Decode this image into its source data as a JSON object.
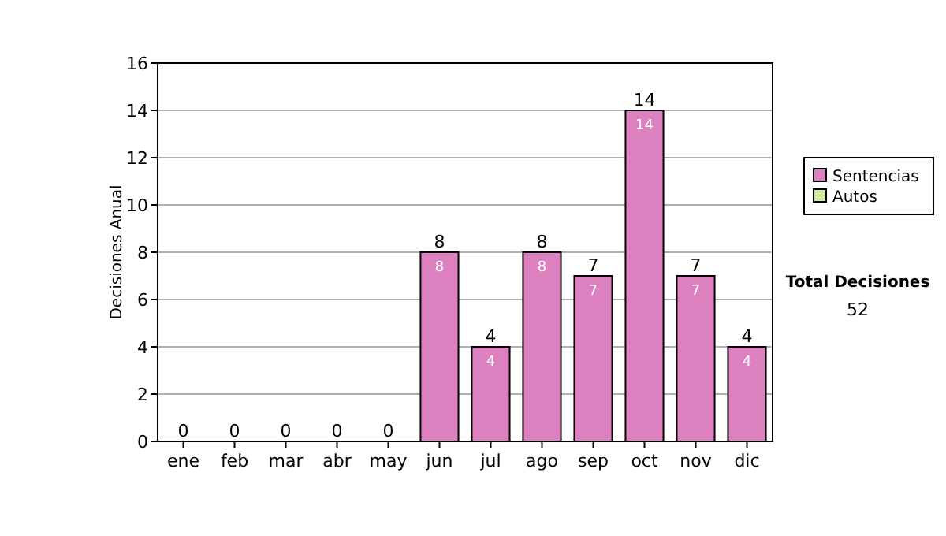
{
  "chart_data": {
    "type": "bar",
    "ylabel": "Decisiones Anual",
    "categories": [
      "ene",
      "feb",
      "mar",
      "abr",
      "may",
      "jun",
      "jul",
      "ago",
      "sep",
      "oct",
      "nov",
      "dic"
    ],
    "stacked": true,
    "series": [
      {
        "name": "Sentencias",
        "color": "#dd80c0",
        "values": [
          0,
          0,
          0,
          0,
          0,
          8,
          4,
          8,
          7,
          14,
          7,
          4
        ],
        "value_labels": [
          null,
          null,
          null,
          null,
          null,
          "8",
          "4",
          "8",
          "7",
          "14",
          "7",
          "4"
        ]
      },
      {
        "name": "Autos",
        "color": "#d4e8a0",
        "values": [
          0,
          0,
          0,
          0,
          0,
          0,
          0,
          0,
          0,
          0,
          0,
          0
        ]
      }
    ],
    "totals": [
      "0",
      "0",
      "0",
      "0",
      "0",
      "8",
      "4",
      "8",
      "7",
      "14",
      "7",
      "4"
    ],
    "ylim": [
      0,
      16
    ],
    "yticks": [
      0,
      2,
      4,
      6,
      8,
      10,
      12,
      14,
      16
    ],
    "grid": "y",
    "legend": "right",
    "annotations": [
      "Total Decisiones",
      "52"
    ]
  }
}
